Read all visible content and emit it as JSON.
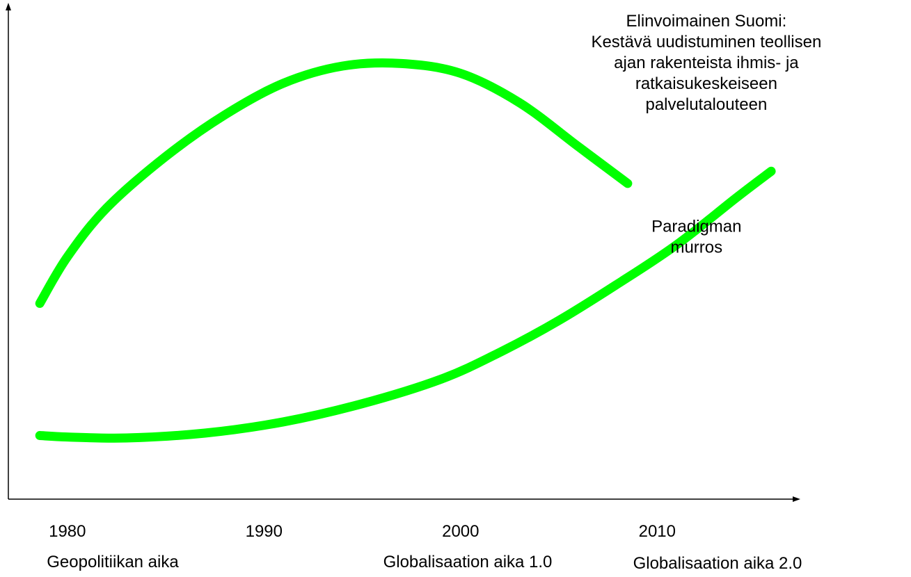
{
  "chart_data": {
    "type": "line",
    "title": "",
    "xlabel": "",
    "ylabel": "",
    "x_ticks": [
      "1980",
      "1990",
      "2000",
      "2010"
    ],
    "era_labels": [
      "Geopolitiikan aika",
      "Globalisaation aika 1.0",
      "Globalisaation aika 2.0"
    ],
    "xlim": [
      1977,
      2017
    ],
    "ylim": [
      0,
      100
    ],
    "grid": false,
    "legend": "none",
    "series": [
      {
        "color": "#00ff00",
        "x": [
          1978.6,
          1980,
          1982,
          1985,
          1988,
          1991,
          1994,
          1997,
          2000,
          2003,
          2006,
          2008.5
        ],
        "y": [
          40,
          49.5,
          59.5,
          70,
          78.5,
          85,
          88.5,
          89,
          87,
          81,
          72,
          64.5
        ]
      },
      {
        "color": "#00ff00",
        "x": [
          1978.6,
          1980,
          1983,
          1987,
          1991,
          1995,
          1999,
          2002,
          2005,
          2008,
          2011,
          2014,
          2015.8
        ],
        "y": [
          13,
          12.7,
          12.5,
          13.5,
          15.8,
          19.5,
          24.5,
          30,
          36.5,
          44,
          52,
          61.5,
          67
        ]
      }
    ],
    "annotations": [
      {
        "lines": [
          "Elinvoimainen Suomi:",
          "Kestävä uudistuminen teollisen",
          "ajan rakenteista ihmis- ja",
          "ratkaisukeskeiseen",
          "palvelutalouteen"
        ],
        "x": 2012.5,
        "y": 100
      },
      {
        "lines": [
          "Paradigman",
          "murros"
        ],
        "x": 2012,
        "y": 58
      }
    ]
  }
}
